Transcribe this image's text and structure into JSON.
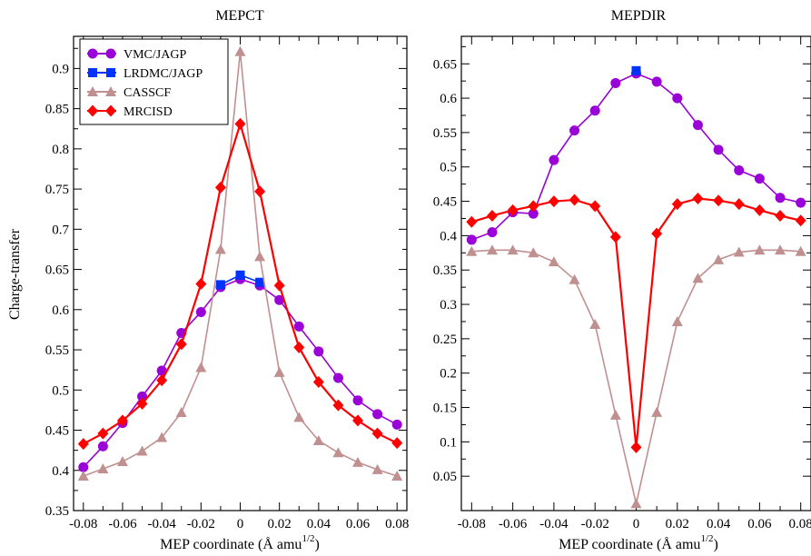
{
  "chart_data": [
    {
      "type": "line",
      "title": "MEPCT",
      "xlabel": "MEP coordinate (Å amu",
      "xlabel_sup": "1/2",
      "xlabel_end": ")",
      "ylabel": "Charge-transfer",
      "xlim": [
        -0.085,
        0.085
      ],
      "ylim": [
        0.35,
        0.94
      ],
      "xticks": [
        -0.08,
        -0.06,
        -0.04,
        -0.02,
        0,
        0.02,
        0.04,
        0.06,
        0.08
      ],
      "xtick_labels": [
        "-0.08",
        "-0.06",
        "-0.04",
        "-0.02",
        "0",
        "0.02",
        "0.04",
        "0.06",
        "0.08"
      ],
      "yticks": [
        0.35,
        0.4,
        0.45,
        0.5,
        0.55,
        0.6,
        0.65,
        0.7,
        0.75,
        0.8,
        0.85,
        0.9
      ],
      "ytick_labels": [
        "0.35",
        "0.4",
        "0.45",
        "0.5",
        "0.55",
        "0.6",
        "0.65",
        "0.7",
        "0.75",
        "0.8",
        "0.85",
        "0.9"
      ],
      "legend": {
        "placement": "top-left"
      },
      "series": [
        {
          "name": "VMC/JAGP",
          "color": "#9a00d8",
          "marker": "circle",
          "x": [
            -0.08,
            -0.07,
            -0.06,
            -0.05,
            -0.04,
            -0.03,
            -0.02,
            -0.01,
            0,
            0.01,
            0.02,
            0.03,
            0.04,
            0.05,
            0.06,
            0.07,
            0.08
          ],
          "y": [
            0.404,
            0.43,
            0.459,
            0.492,
            0.524,
            0.571,
            0.597,
            0.628,
            0.638,
            0.63,
            0.612,
            0.579,
            0.548,
            0.515,
            0.487,
            0.47,
            0.457
          ]
        },
        {
          "name": "LRDMC/JAGP",
          "color": "#0033ff",
          "marker": "square",
          "x": [
            -0.01,
            0,
            0.01
          ],
          "y": [
            0.631,
            0.643,
            0.634
          ]
        },
        {
          "name": "CASSCF",
          "color": "#c09090",
          "marker": "triangle",
          "x": [
            -0.08,
            -0.07,
            -0.06,
            -0.05,
            -0.04,
            -0.03,
            -0.02,
            -0.01,
            0,
            0.01,
            0.02,
            0.03,
            0.04,
            0.05,
            0.06,
            0.07,
            0.08
          ],
          "y": [
            0.393,
            0.402,
            0.411,
            0.424,
            0.441,
            0.472,
            0.528,
            0.675,
            0.921,
            0.666,
            0.522,
            0.466,
            0.437,
            0.422,
            0.41,
            0.401,
            0.393
          ]
        },
        {
          "name": "MRCISD",
          "color": "#ff0000",
          "marker": "diamond",
          "x": [
            -0.08,
            -0.07,
            -0.06,
            -0.05,
            -0.04,
            -0.03,
            -0.02,
            -0.01,
            0,
            0.01,
            0.02,
            0.03,
            0.04,
            0.05,
            0.06,
            0.07,
            0.08
          ],
          "y": [
            0.433,
            0.446,
            0.462,
            0.483,
            0.512,
            0.557,
            0.632,
            0.752,
            0.831,
            0.747,
            0.63,
            0.553,
            0.51,
            0.481,
            0.462,
            0.446,
            0.434
          ]
        }
      ]
    },
    {
      "type": "line",
      "title": "MEPDIR",
      "xlabel": "MEP coordinate (Å amu",
      "xlabel_sup": "1/2",
      "xlabel_end": ")",
      "xlim": [
        -0.085,
        0.085
      ],
      "ylim": [
        0,
        0.69
      ],
      "xticks": [
        -0.08,
        -0.06,
        -0.04,
        -0.02,
        0,
        0.02,
        0.04,
        0.06,
        0.08
      ],
      "xtick_labels": [
        "-0.08",
        "-0.06",
        "-0.04",
        "-0.02",
        "0",
        "0.02",
        "0.04",
        "0.06",
        "0.08"
      ],
      "yticks": [
        0.05,
        0.1,
        0.15,
        0.2,
        0.25,
        0.3,
        0.35,
        0.4,
        0.45,
        0.5,
        0.55,
        0.6,
        0.65
      ],
      "ytick_labels": [
        "0.05",
        "0.1",
        "0.15",
        "0.2",
        "0.25",
        "0.3",
        "0.35",
        "0.4",
        "0.45",
        "0.5",
        "0.55",
        "0.6",
        "0.65"
      ],
      "series": [
        {
          "color": "#9a00d8",
          "marker": "circle",
          "x": [
            -0.08,
            -0.07,
            -0.06,
            -0.05,
            -0.04,
            -0.03,
            -0.02,
            -0.01,
            0,
            0.01,
            0.02,
            0.03,
            0.04,
            0.05,
            0.06,
            0.07,
            0.08
          ],
          "y": [
            0.394,
            0.405,
            0.434,
            0.432,
            0.51,
            0.553,
            0.582,
            0.622,
            0.636,
            0.624,
            0.6,
            0.561,
            0.525,
            0.495,
            0.483,
            0.455,
            0.448
          ]
        },
        {
          "color": "#0033ff",
          "marker": "square",
          "x": [
            0
          ],
          "y": [
            0.64
          ]
        },
        {
          "color": "#c09090",
          "marker": "triangle",
          "x": [
            -0.08,
            -0.07,
            -0.06,
            -0.05,
            -0.04,
            -0.03,
            -0.02,
            -0.01,
            0,
            0.01,
            0.02,
            0.03,
            0.04,
            0.05,
            0.06,
            0.07,
            0.08
          ],
          "y": [
            0.377,
            0.379,
            0.379,
            0.375,
            0.362,
            0.336,
            0.271,
            0.139,
            0.01,
            0.143,
            0.275,
            0.338,
            0.365,
            0.376,
            0.379,
            0.379,
            0.377
          ]
        },
        {
          "color": "#ff0000",
          "marker": "diamond",
          "x": [
            -0.08,
            -0.07,
            -0.06,
            -0.05,
            -0.04,
            -0.03,
            -0.02,
            -0.01,
            0,
            0.01,
            0.02,
            0.03,
            0.04,
            0.05,
            0.06,
            0.07,
            0.08
          ],
          "y": [
            0.42,
            0.429,
            0.437,
            0.443,
            0.45,
            0.452,
            0.443,
            0.398,
            0.092,
            0.403,
            0.446,
            0.454,
            0.451,
            0.446,
            0.437,
            0.429,
            0.422
          ]
        }
      ]
    }
  ]
}
